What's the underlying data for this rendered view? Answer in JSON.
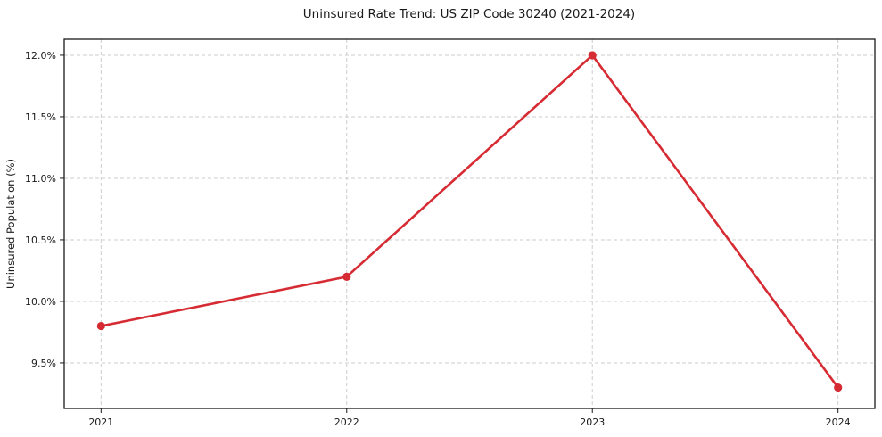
{
  "figure": {
    "background": "#ffffff",
    "text_color": "#1a1a1a",
    "spine_color": "#1a1a1a"
  },
  "chart_data": {
    "type": "line",
    "title": "Uninsured Rate Trend: US ZIP Code 30240 (2021-2024)",
    "xlabel": "",
    "ylabel": "Uninsured Population (%)",
    "x": [
      2021,
      2022,
      2023,
      2024
    ],
    "x_tick_labels": [
      "2021",
      "2022",
      "2023",
      "2024"
    ],
    "values": [
      9.8,
      10.2,
      12.0,
      9.3
    ],
    "y_ticks": [
      9.5,
      10.0,
      10.5,
      11.0,
      11.5,
      12.0
    ],
    "y_tick_labels": [
      "9.5%",
      "10.0%",
      "10.5%",
      "11.0%",
      "11.5%",
      "12.0%"
    ],
    "xlim": [
      2020.85,
      2024.15
    ],
    "ylim": [
      9.13,
      12.13
    ],
    "grid": true,
    "grid_style": "dashed",
    "legend": false,
    "line_color": "#d62b33",
    "grid_color": "#cccccc",
    "marker": "circle"
  }
}
